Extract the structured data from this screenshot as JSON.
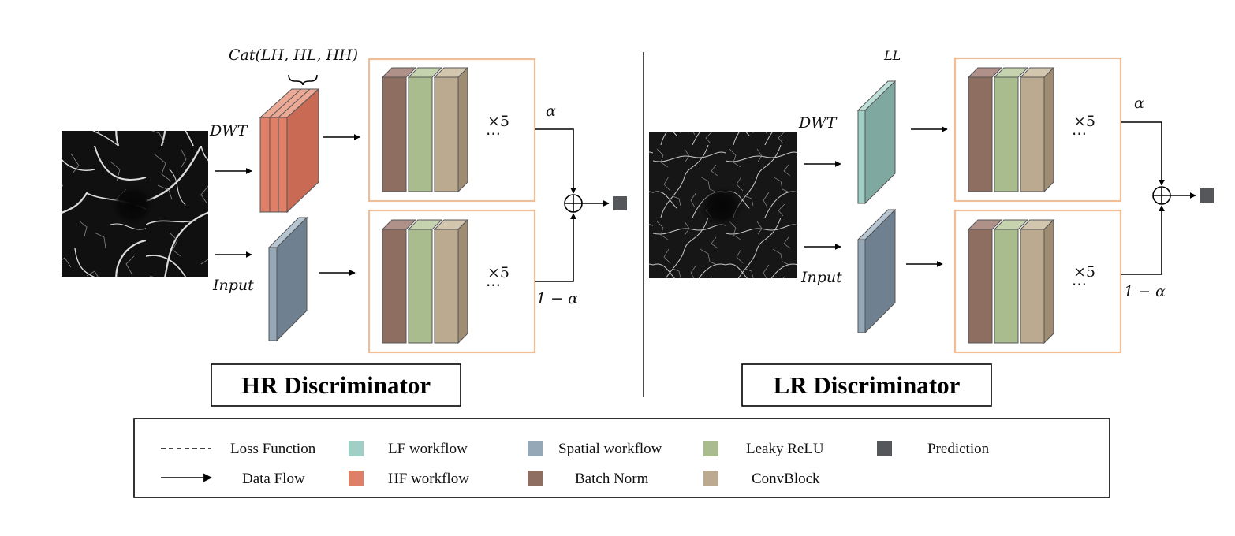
{
  "colors": {
    "hf": "#E07F68",
    "lf": "#9FCFC5",
    "spatial": "#95A8B8",
    "batch_norm": "#8E6E60",
    "leaky_relu": "#A8BC8E",
    "conv_block": "#BBAA90",
    "prediction": "#55575B",
    "box_border": "#EDBE98"
  },
  "hr": {
    "title": "HR Discriminator",
    "cat_label": "Cat(LH, HL, HH)",
    "dwt_label": "DWT",
    "input_label": "Input",
    "repeat_top": "×5",
    "repeat_bottom": "×5",
    "dots": "⋯",
    "alpha": "α",
    "one_minus_alpha": "1 − α"
  },
  "lr": {
    "title": "LR Discriminator",
    "ll_label": "LL",
    "dwt_label": "DWT",
    "input_label": "Input",
    "repeat_top": "×5",
    "repeat_bottom": "×5",
    "dots": "⋯",
    "alpha": "α",
    "one_minus_alpha": "1 − α"
  },
  "legend": {
    "loss_function": "Loss Function",
    "data_flow": "Data Flow",
    "lf_workflow": "LF workflow",
    "hf_workflow": "HF workflow",
    "spatial_workflow": "Spatial workflow",
    "batch_norm": "Batch Norm",
    "leaky_relu": "Leaky ReLU",
    "conv_block": "ConvBlock",
    "prediction": "Prediction"
  }
}
